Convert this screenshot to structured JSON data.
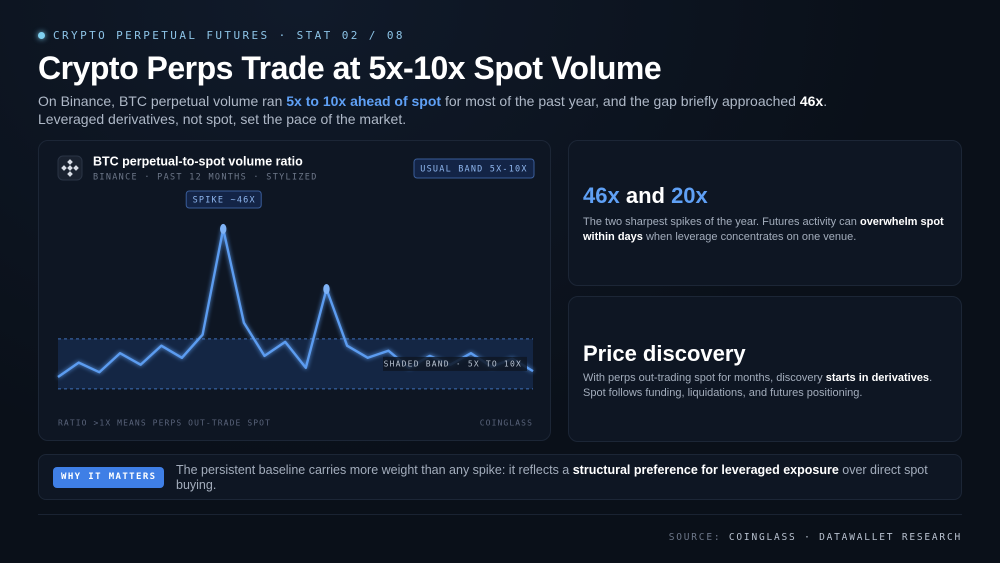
{
  "header": {
    "eyebrow": "CRYPTO PERPETUAL FUTURES · STAT 02 / 08",
    "title": "Crypto Perps Trade at 5x-10x Spot Volume",
    "subtitle": [
      "On Binance, BTC perpetual volume ran ",
      "5x to 10x ahead of spot",
      " for most of the past year, and the gap briefly approached ",
      "46x",
      ". Leveraged derivatives, not spot, set the pace of the market."
    ]
  },
  "chart_data": {
    "type": "line",
    "title": "BTC perpetual-to-spot volume ratio",
    "subtitle": "BINANCE · PAST 12 MONTHS · STYLIZED",
    "badge": "USUAL BAND 5X-10X",
    "annotation": "SPIKE ~46X",
    "band_label": "SHADED BAND · 5X TO 10X",
    "note": "RATIO >1X MEANS PERPS OUT-TRADE SPOT",
    "source": "COINGLASS",
    "categories": [
      null,
      null,
      null,
      null,
      null,
      null,
      null,
      null,
      null,
      null,
      null,
      null,
      null,
      null,
      null,
      null,
      null,
      null,
      null,
      null,
      null,
      null,
      null,
      null
    ],
    "values": [
      5.9,
      7.2,
      6.3,
      8.2,
      7.0,
      9.1,
      7.7,
      10.6,
      46,
      12.5,
      7.9,
      9.6,
      6.7,
      20,
      9.1,
      7.7,
      8.5,
      6.7,
      7.9,
      7.0,
      8.2,
      6.8,
      7.6,
      6.4
    ],
    "color": "#5b9cf0",
    "band": [
      5,
      10
    ],
    "band_color": "#1a3460",
    "log": true,
    "ylim": [
      4,
      80
    ]
  },
  "cards": [
    {
      "headline": [
        "46x",
        " and ",
        "20x"
      ],
      "body": [
        "The two sharpest spikes of the year. Futures activity can ",
        "overwhelm spot within days",
        " when leverage concentrates on one venue."
      ]
    },
    {
      "headline": [
        "Price discovery"
      ],
      "body": [
        "With perps out-trading spot for months, discovery ",
        "starts in derivatives",
        ". Spot follows funding, liquidations, and futures positioning."
      ]
    }
  ],
  "callout": {
    "label": "WHY IT MATTERS",
    "text": [
      "The persistent baseline carries more weight than any spike: it reflects a ",
      "structural preference for leveraged exposure",
      " over direct spot buying."
    ]
  },
  "footer": {
    "source": [
      "SOURCE: ",
      "COINGLASS · DATAWALLET RESEARCH"
    ]
  }
}
